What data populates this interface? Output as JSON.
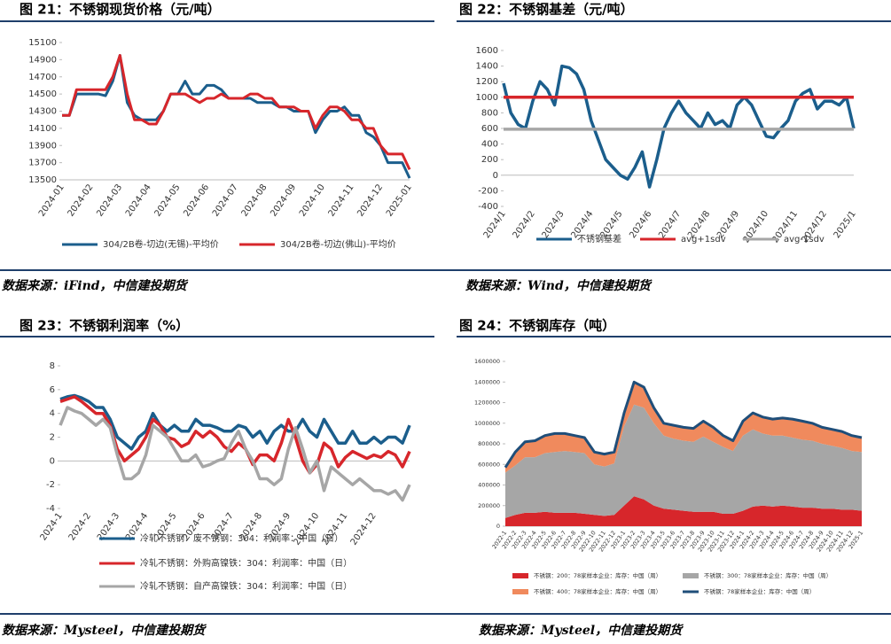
{
  "chart_data": [
    {
      "type": "line",
      "title": "图 21：不锈钢现货价格（元/吨）",
      "source": "数据来源：iFind，中信建投期货",
      "categories": [
        "2024-01",
        null,
        null,
        null,
        "2024-02",
        null,
        null,
        null,
        "2024-03",
        null,
        null,
        null,
        "2024-04",
        null,
        null,
        null,
        "2024-05",
        null,
        null,
        null,
        "2024-06",
        null,
        null,
        null,
        "2024-07",
        null,
        null,
        null,
        "2024-08",
        null,
        null,
        null,
        "2024-09",
        null,
        null,
        null,
        "2024-10",
        null,
        null,
        null,
        "2024-11",
        null,
        null,
        null,
        "2024-12",
        null,
        null,
        null,
        "2025-01"
      ],
      "series": [
        {
          "name": "304/2B卷-切边(无锡)-平均价",
          "color": "#1b5e8c",
          "values": [
            14250,
            14250,
            14500,
            14500,
            14500,
            14500,
            14480,
            14650,
            14950,
            14400,
            14250,
            14200,
            14200,
            14200,
            14300,
            14500,
            14500,
            14650,
            14500,
            14500,
            14600,
            14600,
            14550,
            14450,
            14450,
            14450,
            14450,
            14400,
            14400,
            14400,
            14350,
            14350,
            14300,
            14300,
            14300,
            14050,
            14200,
            14300,
            14300,
            14350,
            14250,
            14250,
            14050,
            14000,
            13900,
            13700,
            13700,
            13700,
            13520
          ]
        },
        {
          "name": "304/2B卷-切边(佛山)-平均价",
          "color": "#d7262b",
          "values": [
            14250,
            14250,
            14550,
            14550,
            14550,
            14550,
            14550,
            14700,
            14950,
            14500,
            14200,
            14200,
            14150,
            14150,
            14300,
            14500,
            14500,
            14500,
            14450,
            14400,
            14450,
            14450,
            14500,
            14450,
            14450,
            14450,
            14500,
            14500,
            14450,
            14450,
            14350,
            14350,
            14350,
            14300,
            14300,
            14100,
            14250,
            14350,
            14350,
            14300,
            14200,
            14200,
            14100,
            14100,
            13900,
            13800,
            13800,
            13800,
            13620
          ]
        }
      ],
      "ylim": [
        13500,
        15100
      ],
      "yticks": [
        13500,
        13700,
        13900,
        14100,
        14300,
        14500,
        14700,
        14900,
        15100
      ],
      "legend": "bottom"
    },
    {
      "type": "line",
      "title": "图 22：不锈钢基差（元/吨）",
      "source": "数据来源：Wind，中信建投期货",
      "categories": [
        "2024/1",
        null,
        null,
        null,
        "2024/2",
        null,
        null,
        null,
        "2024/3",
        null,
        null,
        null,
        "2024/4",
        null,
        null,
        null,
        "2024/5",
        null,
        null,
        null,
        "2024/6",
        null,
        null,
        null,
        "2024/7",
        null,
        null,
        null,
        "2024/8",
        null,
        null,
        null,
        "2024/9",
        null,
        null,
        null,
        "2024/10",
        null,
        null,
        null,
        "2024/11",
        null,
        null,
        null,
        "2024/12",
        null,
        null,
        null,
        "2025/1"
      ],
      "series": [
        {
          "name": "不锈钢基差",
          "color": "#1b5e8c",
          "values": [
            1180,
            800,
            650,
            600,
            950,
            1200,
            1100,
            900,
            1400,
            1380,
            1300,
            1100,
            700,
            450,
            200,
            100,
            0,
            -50,
            100,
            300,
            -150,
            200,
            600,
            800,
            950,
            800,
            700,
            600,
            800,
            650,
            700,
            600,
            900,
            1000,
            900,
            700,
            500,
            480,
            600,
            700,
            950,
            1050,
            1100,
            850,
            950,
            950,
            900,
            1000,
            600
          ]
        },
        {
          "name": "avg+1sdv",
          "color": "#d7262b",
          "values": [
            1000,
            1000,
            1000,
            1000,
            1000,
            1000,
            1000,
            1000,
            1000,
            1000,
            1000,
            1000,
            1000,
            1000,
            1000,
            1000,
            1000,
            1000,
            1000,
            1000,
            1000,
            1000,
            1000,
            1000,
            1000,
            1000,
            1000,
            1000,
            1000,
            1000,
            1000,
            1000,
            1000,
            1000,
            1000,
            1000,
            1000,
            1000,
            1000,
            1000,
            1000,
            1000,
            1000,
            1000,
            1000,
            1000,
            1000,
            1000,
            1000
          ]
        },
        {
          "name": "avg-1sdv",
          "color": "#a6a6a6",
          "values": [
            590,
            590,
            590,
            590,
            590,
            590,
            590,
            590,
            590,
            590,
            590,
            590,
            590,
            590,
            590,
            590,
            590,
            590,
            590,
            590,
            590,
            590,
            590,
            590,
            590,
            590,
            590,
            590,
            590,
            590,
            590,
            590,
            590,
            590,
            590,
            590,
            590,
            590,
            590,
            590,
            590,
            590,
            590,
            590,
            590,
            590,
            590,
            590,
            590
          ]
        }
      ],
      "ylim": [
        -400,
        1600
      ],
      "yticks": [
        -400,
        -200,
        0,
        200,
        400,
        600,
        800,
        1000,
        1200,
        1400,
        1600
      ],
      "legend": "bottom"
    },
    {
      "type": "line",
      "title": "图 23：不锈钢利润率（%）",
      "source": "数据来源：Mysteel，中信建投期货",
      "categories": [
        "2024-1",
        null,
        null,
        null,
        "2024-2",
        null,
        null,
        null,
        "2024-3",
        null,
        null,
        null,
        "2024-4",
        null,
        null,
        null,
        "2024-5",
        null,
        null,
        null,
        "2024-6",
        null,
        null,
        null,
        "2024-7",
        null,
        null,
        null,
        "2024-8",
        null,
        null,
        null,
        "2024-9",
        null,
        null,
        null,
        "2024-10",
        null,
        null,
        null,
        "2024-11",
        null,
        null,
        null,
        "2024-12",
        null,
        null,
        null,
        null,
        null
      ],
      "series": [
        {
          "name": "冷轧不锈钢：废不锈钢：304：利润率：中国（日）",
          "color": "#1b5e8c",
          "values": [
            5.2,
            5.4,
            5.5,
            5.3,
            5,
            4.5,
            4.5,
            3.5,
            2,
            1.5,
            1,
            2,
            2.5,
            4,
            3,
            2.5,
            3,
            2.5,
            2.5,
            3.5,
            3,
            3,
            2.8,
            2.5,
            2.5,
            3,
            2.8,
            2,
            2.5,
            1.5,
            2.5,
            3,
            2.5,
            2.5,
            3.5,
            2.5,
            2,
            3.5,
            2.5,
            1.5,
            1.5,
            2.5,
            1.5,
            1.5,
            2,
            1.5,
            2,
            2,
            1.5,
            3
          ]
        },
        {
          "name": "冷轧不锈钢：外购高镍铁：304：利润率：中国（日）",
          "color": "#d7262b",
          "values": [
            5,
            5.2,
            5.4,
            5,
            4.5,
            4,
            4,
            3,
            1,
            0,
            0.5,
            1,
            2,
            3.5,
            3,
            2,
            1.8,
            1.2,
            1.5,
            2.5,
            2,
            2.5,
            2,
            1.2,
            0.8,
            1.5,
            1,
            -0.3,
            0.5,
            0.5,
            0,
            1.5,
            3.5,
            2,
            0,
            -1,
            -0.3,
            1.5,
            1,
            -0.5,
            0.3,
            0.8,
            0.5,
            0.2,
            0.5,
            0.3,
            0.8,
            0.5,
            -0.5,
            0.8
          ]
        },
        {
          "name": "冷轧不锈钢：自产高镍铁：304：利润率：中国（日）",
          "color": "#a6a6a6",
          "values": [
            3,
            4.5,
            4.2,
            4,
            3.5,
            3,
            3.5,
            2.8,
            0.5,
            -1.5,
            -1.5,
            -1,
            0.5,
            3,
            2.5,
            2,
            1,
            0,
            0,
            0.5,
            -0.5,
            -0.3,
            0,
            0.2,
            1.5,
            2.5,
            1,
            0,
            -1.5,
            -1.5,
            -2,
            -1.5,
            1,
            2.8,
            1,
            -1,
            0,
            -2.5,
            -0.5,
            -1,
            -1.5,
            -2,
            -1.5,
            -2,
            -2.5,
            -2.5,
            -2.8,
            -2.5,
            -3.3,
            -2
          ]
        }
      ],
      "ylim": [
        -4,
        8
      ],
      "yticks": [
        -4,
        -2,
        0,
        2,
        4,
        6,
        8
      ],
      "legend": "bottom"
    },
    {
      "type": "area",
      "title": "图 24：不锈钢库存（吨）",
      "source": "数据来源：Mysteel，中信建投期货",
      "categories": [
        "2022-1",
        "2022-2",
        "2022-3",
        "2022-4",
        "2022-5",
        "2022-6",
        "2022-7",
        "2022-8",
        "2022-9",
        "2022-10",
        "2022-11",
        "2022-12",
        "2023-1",
        "2023-2",
        "2023-3",
        "2023-4",
        "2023-5",
        "2023-6",
        "2023-7",
        "2023-8",
        "2023-9",
        "2023-10",
        "2023-11",
        "2023-12",
        "2024-1",
        "2024-2",
        "2024-3",
        "2024-4",
        "2024-5",
        "2024-6",
        "2024-7",
        "2024-8",
        "2024-9",
        "2024-10",
        "2024-11",
        "2024-12",
        "2025-1"
      ],
      "series": [
        {
          "name": "不锈钢：200：78家样本企业：库存：中国（周）",
          "color": "#d7262b",
          "values": [
            80000,
            110000,
            130000,
            130000,
            140000,
            130000,
            130000,
            130000,
            120000,
            110000,
            100000,
            110000,
            200000,
            290000,
            260000,
            200000,
            170000,
            160000,
            150000,
            140000,
            140000,
            140000,
            120000,
            120000,
            150000,
            190000,
            200000,
            190000,
            200000,
            190000,
            180000,
            180000,
            170000,
            170000,
            160000,
            160000,
            150000
          ]
        },
        {
          "name": "不锈钢：300：78家样本企业：库存：中国（周）",
          "color": "#a6a6a6",
          "values": [
            440000,
            480000,
            540000,
            540000,
            570000,
            590000,
            600000,
            590000,
            590000,
            490000,
            480000,
            500000,
            770000,
            890000,
            890000,
            800000,
            710000,
            690000,
            680000,
            680000,
            730000,
            680000,
            650000,
            610000,
            730000,
            750000,
            700000,
            690000,
            680000,
            670000,
            660000,
            650000,
            630000,
            610000,
            600000,
            570000,
            570000
          ]
        },
        {
          "name": "不锈钢：400：78家样本企业：库存：中国（周）",
          "color": "#f08a5d",
          "values": [
            50000,
            130000,
            150000,
            160000,
            170000,
            180000,
            170000,
            160000,
            150000,
            120000,
            120000,
            110000,
            130000,
            220000,
            200000,
            150000,
            120000,
            130000,
            130000,
            130000,
            150000,
            140000,
            110000,
            100000,
            140000,
            160000,
            160000,
            160000,
            170000,
            180000,
            180000,
            170000,
            160000,
            160000,
            160000,
            150000,
            140000
          ]
        },
        {
          "name": "不锈钢：78家样本企业：库存：中国（周）",
          "color": "#1f4e79",
          "type": "line",
          "values": [
            570000,
            720000,
            820000,
            830000,
            880000,
            900000,
            900000,
            880000,
            860000,
            720000,
            700000,
            720000,
            1100000,
            1400000,
            1350000,
            1150000,
            1000000,
            980000,
            960000,
            950000,
            1020000,
            960000,
            880000,
            830000,
            1020000,
            1100000,
            1060000,
            1040000,
            1050000,
            1040000,
            1020000,
            1000000,
            960000,
            940000,
            920000,
            880000,
            860000
          ]
        }
      ],
      "ylim": [
        0,
        1600000
      ],
      "yticks": [
        0,
        200000,
        400000,
        600000,
        800000,
        1000000,
        1200000,
        1400000,
        1600000
      ],
      "legend": "bottom"
    }
  ]
}
